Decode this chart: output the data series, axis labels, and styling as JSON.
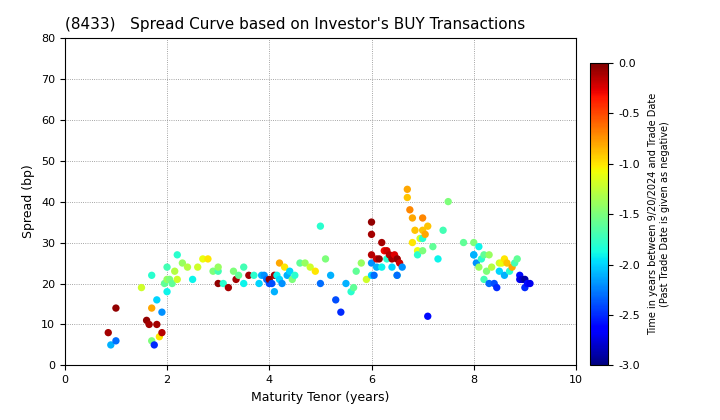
{
  "title": "(8433)   Spread Curve based on Investor's BUY Transactions",
  "xlabel": "Maturity Tenor (years)",
  "ylabel": "Spread (bp)",
  "xlim": [
    0,
    10
  ],
  "ylim": [
    0,
    80
  ],
  "xticks": [
    0,
    2,
    4,
    6,
    8,
    10
  ],
  "yticks": [
    0,
    10,
    20,
    30,
    40,
    50,
    60,
    70,
    80
  ],
  "colorbar_label_line1": "Time in years between 9/20/2024 and Trade Date",
  "colorbar_label_line2": "(Past Trade Date is given as negative)",
  "cmin": -3.0,
  "cmax": 0.0,
  "colorbar_ticks": [
    0.0,
    -0.5,
    -1.0,
    -1.5,
    -2.0,
    -2.5,
    -3.0
  ],
  "marker_size": 28,
  "background_color": "#ffffff",
  "grid_color": "#888888",
  "title_fontsize": 11,
  "axis_label_fontsize": 9,
  "tick_fontsize": 8,
  "colorbar_tick_fontsize": 8,
  "colorbar_label_fontsize": 7,
  "scatter_points": [
    [
      0.85,
      8,
      -0.1
    ],
    [
      0.9,
      5,
      -2.1
    ],
    [
      1.0,
      14,
      -0.05
    ],
    [
      1.0,
      6,
      -2.3
    ],
    [
      1.5,
      19,
      -1.2
    ],
    [
      1.6,
      11,
      -0.05
    ],
    [
      1.65,
      10,
      -0.1
    ],
    [
      1.7,
      6,
      -1.5
    ],
    [
      1.7,
      14,
      -0.8
    ],
    [
      1.7,
      22,
      -1.8
    ],
    [
      1.75,
      5,
      -2.5
    ],
    [
      1.8,
      10,
      -0.1
    ],
    [
      1.8,
      16,
      -2.0
    ],
    [
      1.85,
      7,
      -1.0
    ],
    [
      1.9,
      8,
      -0.15
    ],
    [
      1.9,
      13,
      -2.2
    ],
    [
      1.95,
      20,
      -1.6
    ],
    [
      2.0,
      24,
      -1.7
    ],
    [
      2.0,
      21,
      -1.4
    ],
    [
      2.0,
      18,
      -1.9
    ],
    [
      2.05,
      21,
      -1.5
    ],
    [
      2.1,
      20,
      -1.6
    ],
    [
      2.15,
      23,
      -1.3
    ],
    [
      2.2,
      27,
      -1.8
    ],
    [
      2.2,
      21,
      -1.2
    ],
    [
      2.3,
      25,
      -1.4
    ],
    [
      2.4,
      24,
      -1.3
    ],
    [
      2.5,
      21,
      -1.9
    ],
    [
      2.6,
      24,
      -1.2
    ],
    [
      2.7,
      26,
      -1.1
    ],
    [
      2.8,
      26,
      -1.0
    ],
    [
      2.9,
      23,
      -1.5
    ],
    [
      3.0,
      20,
      -0.05
    ],
    [
      3.0,
      23,
      -1.7
    ],
    [
      3.0,
      24,
      -1.4
    ],
    [
      3.1,
      20,
      -1.8
    ],
    [
      3.2,
      19,
      -0.1
    ],
    [
      3.3,
      23,
      -1.5
    ],
    [
      3.35,
      21,
      -0.1
    ],
    [
      3.4,
      22,
      -1.6
    ],
    [
      3.5,
      24,
      -1.7
    ],
    [
      3.5,
      20,
      -1.9
    ],
    [
      3.6,
      22,
      -0.1
    ],
    [
      3.7,
      22,
      -1.8
    ],
    [
      3.8,
      20,
      -2.0
    ],
    [
      3.85,
      22,
      -2.1
    ],
    [
      3.9,
      22,
      -2.2
    ],
    [
      3.95,
      21,
      -2.3
    ],
    [
      4.0,
      20,
      -2.4
    ],
    [
      4.0,
      21,
      -0.05
    ],
    [
      4.05,
      20,
      -2.4
    ],
    [
      4.1,
      18,
      -2.1
    ],
    [
      4.1,
      22,
      -0.1
    ],
    [
      4.15,
      22,
      -1.9
    ],
    [
      4.2,
      21,
      -2.0
    ],
    [
      4.2,
      25,
      -0.8
    ],
    [
      4.25,
      20,
      -2.2
    ],
    [
      4.3,
      24,
      -1.0
    ],
    [
      4.35,
      22,
      -2.1
    ],
    [
      4.4,
      23,
      -2.0
    ],
    [
      4.45,
      21,
      -1.5
    ],
    [
      4.5,
      22,
      -1.8
    ],
    [
      4.6,
      25,
      -1.6
    ],
    [
      4.7,
      25,
      -1.4
    ],
    [
      4.8,
      24,
      -1.2
    ],
    [
      4.9,
      23,
      -1.0
    ],
    [
      5.0,
      20,
      -2.3
    ],
    [
      5.0,
      34,
      -1.8
    ],
    [
      5.1,
      26,
      -1.5
    ],
    [
      5.2,
      22,
      -2.1
    ],
    [
      5.3,
      16,
      -2.4
    ],
    [
      5.4,
      13,
      -2.5
    ],
    [
      5.5,
      20,
      -2.1
    ],
    [
      5.6,
      18,
      -1.8
    ],
    [
      5.65,
      19,
      -1.6
    ],
    [
      5.7,
      23,
      -1.6
    ],
    [
      5.8,
      25,
      -1.4
    ],
    [
      5.9,
      21,
      -1.2
    ],
    [
      6.0,
      35,
      -0.05
    ],
    [
      6.0,
      32,
      -0.1
    ],
    [
      6.0,
      27,
      -0.15
    ],
    [
      6.0,
      25,
      -2.2
    ],
    [
      6.0,
      22,
      -2.0
    ],
    [
      6.05,
      22,
      -2.3
    ],
    [
      6.1,
      26,
      -0.2
    ],
    [
      6.1,
      24,
      -2.1
    ],
    [
      6.15,
      26,
      -0.05
    ],
    [
      6.2,
      30,
      -0.1
    ],
    [
      6.2,
      24,
      -1.9
    ],
    [
      6.25,
      28,
      -0.3
    ],
    [
      6.3,
      28,
      -0.2
    ],
    [
      6.3,
      26,
      -1.8
    ],
    [
      6.35,
      27,
      -0.15
    ],
    [
      6.4,
      26,
      -0.1
    ],
    [
      6.4,
      24,
      -2.0
    ],
    [
      6.45,
      27,
      -0.25
    ],
    [
      6.5,
      26,
      -0.3
    ],
    [
      6.5,
      26,
      -0.05
    ],
    [
      6.5,
      22,
      -1.7
    ],
    [
      6.5,
      22,
      -2.3
    ],
    [
      6.55,
      25,
      -0.2
    ],
    [
      6.6,
      24,
      -2.2
    ],
    [
      6.7,
      43,
      -0.8
    ],
    [
      6.7,
      41,
      -0.9
    ],
    [
      6.75,
      38,
      -0.7
    ],
    [
      6.8,
      36,
      -0.8
    ],
    [
      6.8,
      30,
      -1.0
    ],
    [
      6.85,
      33,
      -0.9
    ],
    [
      6.9,
      28,
      -1.1
    ],
    [
      6.9,
      27,
      -1.8
    ],
    [
      6.95,
      31,
      -1.2
    ],
    [
      7.0,
      36,
      -0.7
    ],
    [
      7.0,
      28,
      -1.5
    ],
    [
      7.0,
      33,
      -0.9
    ],
    [
      7.0,
      31,
      -1.8
    ],
    [
      7.05,
      32,
      -0.8
    ],
    [
      7.1,
      34,
      -0.9
    ],
    [
      7.1,
      12,
      -2.6
    ],
    [
      7.2,
      29,
      -1.6
    ],
    [
      7.3,
      26,
      -1.9
    ],
    [
      7.4,
      33,
      -1.7
    ],
    [
      7.5,
      40,
      -1.5
    ],
    [
      7.8,
      30,
      -1.6
    ],
    [
      8.0,
      30,
      -1.5
    ],
    [
      8.0,
      27,
      -2.0
    ],
    [
      8.0,
      27,
      -2.1
    ],
    [
      8.05,
      25,
      -2.2
    ],
    [
      8.1,
      29,
      -1.9
    ],
    [
      8.1,
      24,
      -1.4
    ],
    [
      8.15,
      26,
      -1.8
    ],
    [
      8.2,
      21,
      -1.7
    ],
    [
      8.2,
      27,
      -1.6
    ],
    [
      8.25,
      23,
      -1.5
    ],
    [
      8.3,
      27,
      -1.4
    ],
    [
      8.3,
      20,
      -2.3
    ],
    [
      8.35,
      24,
      -1.3
    ],
    [
      8.4,
      20,
      -2.4
    ],
    [
      8.45,
      19,
      -2.5
    ],
    [
      8.5,
      25,
      -1.2
    ],
    [
      8.5,
      23,
      -2.0
    ],
    [
      8.55,
      25,
      -1.1
    ],
    [
      8.6,
      26,
      -1.0
    ],
    [
      8.6,
      22,
      -2.1
    ],
    [
      8.65,
      25,
      -0.9
    ],
    [
      8.7,
      23,
      -1.8
    ],
    [
      8.75,
      24,
      -0.8
    ],
    [
      8.8,
      25,
      -1.7
    ],
    [
      8.85,
      26,
      -1.6
    ],
    [
      8.9,
      22,
      -2.6
    ],
    [
      8.9,
      21,
      -2.7
    ],
    [
      8.95,
      21,
      -2.8
    ],
    [
      9.0,
      21,
      -2.9
    ],
    [
      9.0,
      19,
      -2.5
    ],
    [
      9.05,
      20,
      -2.6
    ],
    [
      9.1,
      20,
      -2.7
    ]
  ]
}
